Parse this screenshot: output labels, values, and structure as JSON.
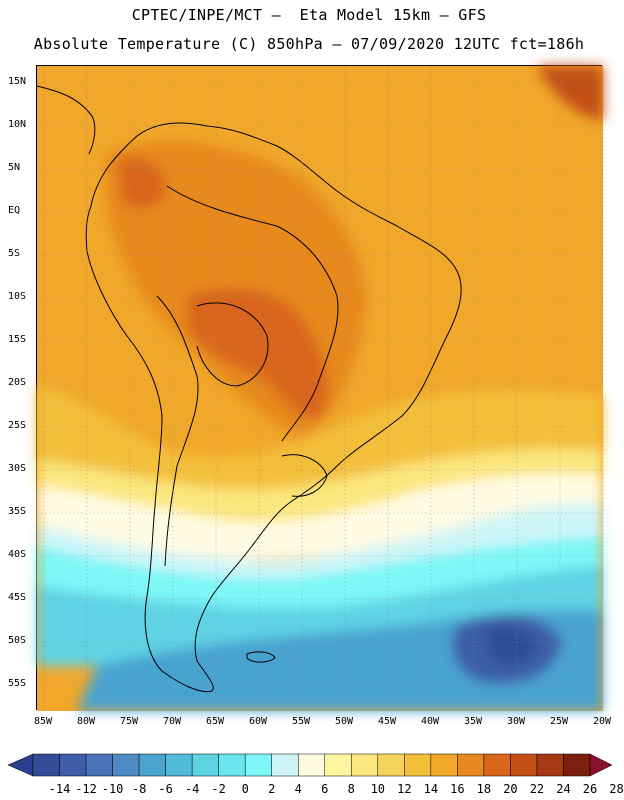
{
  "header": {
    "title_line1": "CPTEC/INPE/MCT –  Eta Model 15km – GFS",
    "title_line2": "Absolute Temperature (C) 850hPa – 07/09/2020 12UTC fct=186h"
  },
  "map": {
    "lat_labels": [
      "15N",
      "10N",
      "5N",
      "EQ",
      "5S",
      "10S",
      "15S",
      "20S",
      "25S",
      "30S",
      "35S",
      "40S",
      "45S",
      "50S",
      "55S"
    ],
    "lon_labels": [
      "85W",
      "80W",
      "75W",
      "70W",
      "65W",
      "60W",
      "55W",
      "50W",
      "45W",
      "40W",
      "35W",
      "30W",
      "25W",
      "20W"
    ]
  },
  "colorbar": {
    "levels": [
      "-14",
      "-12",
      "-10",
      "-8",
      "-6",
      "-4",
      "-2",
      "0",
      "2",
      "4",
      "6",
      "8",
      "10",
      "12",
      "14",
      "16",
      "18",
      "20",
      "22",
      "24",
      "26",
      "28"
    ],
    "colors": [
      "#2c3f8c",
      "#334d98",
      "#3e5ea8",
      "#4a72b8",
      "#4f8ac4",
      "#4aa3d0",
      "#52bcd8",
      "#5ed3e4",
      "#6ce6ee",
      "#7df7f7",
      "#cdf5f8",
      "#fffbe3",
      "#fdf6a0",
      "#fbe77e",
      "#f6d45c",
      "#f3bf3a",
      "#f0a72a",
      "#e7891f",
      "#d9661a",
      "#c34f16",
      "#a63812",
      "#7c1f0d",
      "#8a0f2a"
    ]
  }
}
